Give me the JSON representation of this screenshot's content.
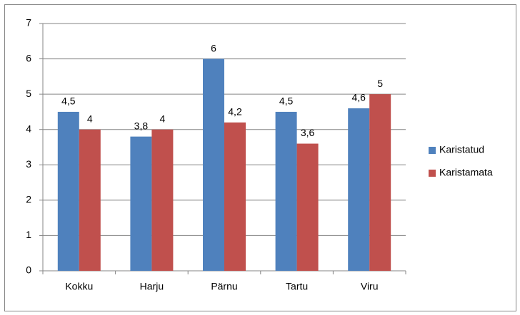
{
  "chart_data": {
    "type": "bar",
    "categories": [
      "Kokku",
      "Harju",
      "Pärnu",
      "Tartu",
      "Viru"
    ],
    "series": [
      {
        "name": "Karistatud",
        "color": "#4f81bd",
        "values": [
          4.5,
          3.8,
          6,
          4.5,
          4.6
        ],
        "value_labels": [
          "4,5",
          "3,8",
          "6",
          "4,5",
          "4,6"
        ]
      },
      {
        "name": "Karistamata",
        "color": "#c0504d",
        "values": [
          4,
          4,
          4.2,
          3.6,
          5
        ],
        "value_labels": [
          "4",
          "4",
          "4,2",
          "3,6",
          "5"
        ]
      }
    ],
    "ylim": [
      0,
      7
    ],
    "yticks": [
      0,
      1,
      2,
      3,
      4,
      5,
      6,
      7
    ],
    "grid": true,
    "legend": "right"
  }
}
